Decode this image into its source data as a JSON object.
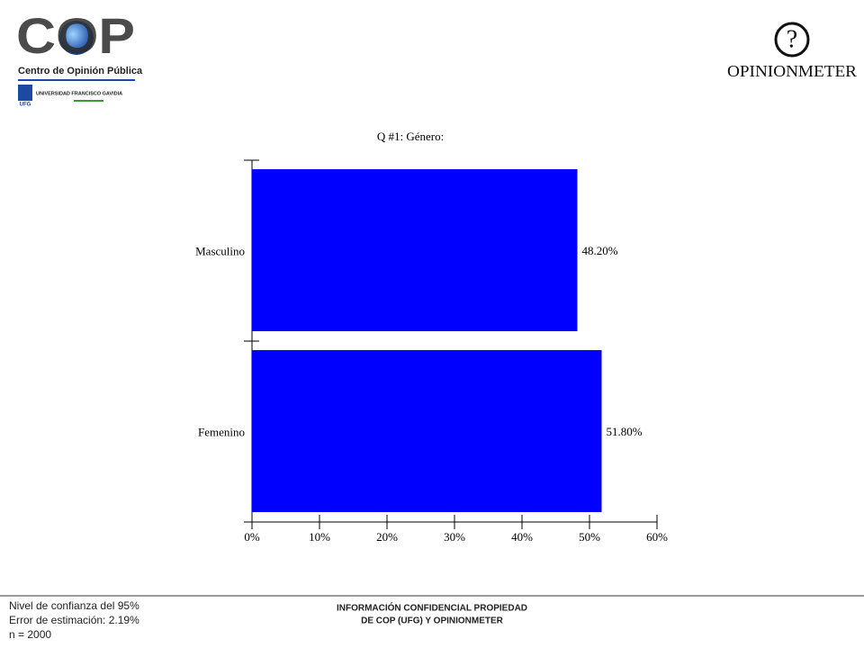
{
  "header": {
    "cop_logo": {
      "name": "COP",
      "subtitle": "Centro de Opinión Pública",
      "university": "UNIVERSIDAD FRANCISCO GAVIDIA",
      "university_short": "UFG"
    },
    "opinionmeter_logo": {
      "symbol": "?",
      "name": "OPINIONMETER"
    }
  },
  "chart_data": {
    "type": "bar",
    "orientation": "horizontal",
    "title": "Q #1: Género:",
    "categories": [
      "Masculino",
      "Femenino"
    ],
    "values": [
      48.2,
      51.8
    ],
    "value_labels": [
      "48.20%",
      "51.80%"
    ],
    "color": "#0000ff",
    "xlim": [
      0,
      60
    ],
    "xticks": [
      {
        "value": 0,
        "label": "0%"
      },
      {
        "value": 10,
        "label": "10%"
      },
      {
        "value": 20,
        "label": "20%"
      },
      {
        "value": 30,
        "label": "30%"
      },
      {
        "value": 40,
        "label": "40%"
      },
      {
        "value": 50,
        "label": "50%"
      },
      {
        "value": 60,
        "label": "60%"
      }
    ]
  },
  "footer": {
    "notes": [
      "Nivel de confianza del 95%",
      "Error de estimación: 2.19%",
      "n = 2000"
    ],
    "confidential": [
      "INFORMACIÓN CONFIDENCIAL PROPIEDAD",
      "DE COP (UFG) Y OPINIONMETER"
    ]
  }
}
